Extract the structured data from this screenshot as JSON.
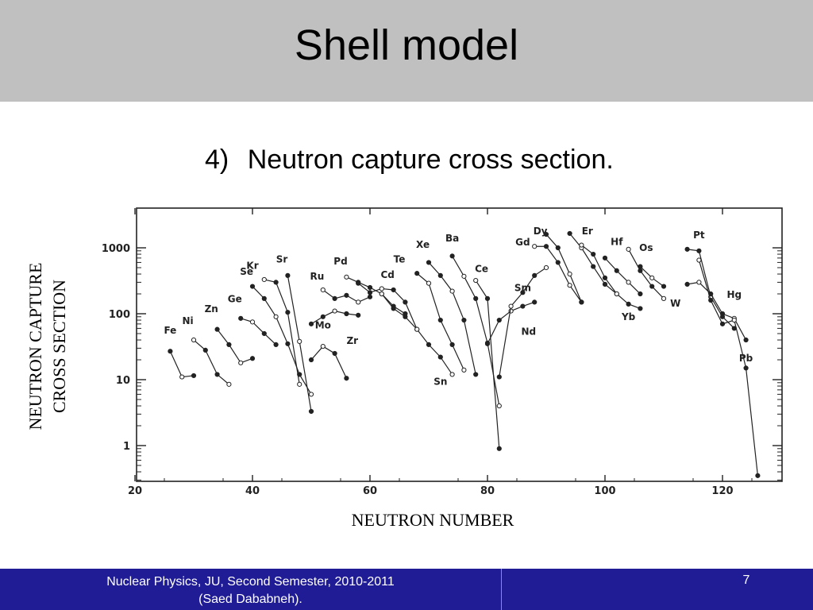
{
  "slide": {
    "title": "Shell model",
    "subtitle_number": "4)",
    "subtitle_text": "Neutron capture cross section.",
    "footer_line1": "Nuclear Physics, JU, Second Semester, 2010-2011",
    "footer_line2": "(Saed Dababneh).",
    "page_number": "7"
  },
  "colors": {
    "title_bar": "#c0c0c0",
    "footer_bar": "#1f1c96",
    "ink": "#222222"
  },
  "chart_data": {
    "type": "line",
    "xlabel": "NEUTRON NUMBER",
    "ylabel_line1": "NEUTRON CAPTURE",
    "ylabel_line2": "CROSS SECTION",
    "xlim": [
      20,
      130
    ],
    "ylim": [
      0.3,
      3000
    ],
    "y_scale": "log",
    "x_ticks": [
      {
        "v": 20,
        "label": "20"
      },
      {
        "v": 40,
        "label": "40"
      },
      {
        "v": 60,
        "label": "60"
      },
      {
        "v": 80,
        "label": "80"
      },
      {
        "v": 100,
        "label": "100"
      },
      {
        "v": 120,
        "label": "120"
      }
    ],
    "y_ticks": [
      {
        "v": 1000,
        "label": "1000"
      },
      {
        "v": 100,
        "label": "100"
      },
      {
        "v": 10,
        "label": "10"
      },
      {
        "v": 1,
        "label": "1"
      }
    ],
    "series": [
      {
        "name": "Fe",
        "label_at": [
          26,
          50
        ],
        "points": [
          [
            26,
            27
          ],
          [
            28,
            11
          ],
          [
            30,
            11.5
          ]
        ]
      },
      {
        "name": "Ni",
        "label_at": [
          29,
          70
        ],
        "points": [
          [
            30,
            40
          ],
          [
            32,
            28
          ],
          [
            34,
            12
          ],
          [
            36,
            8.5
          ]
        ]
      },
      {
        "name": "Zn",
        "label_at": [
          33,
          105
        ],
        "points": [
          [
            34,
            58
          ],
          [
            36,
            34
          ],
          [
            38,
            18
          ],
          [
            40,
            21
          ]
        ]
      },
      {
        "name": "Ge",
        "label_at": [
          37,
          150
        ],
        "points": [
          [
            38,
            85
          ],
          [
            40,
            75
          ],
          [
            42,
            50
          ],
          [
            44,
            34
          ]
        ]
      },
      {
        "name": "Se",
        "label_at": [
          39,
          390
        ],
        "points": [
          [
            42,
            330
          ],
          [
            44,
            300
          ],
          [
            46,
            105
          ],
          [
            48,
            8.5
          ]
        ]
      },
      {
        "name": "Kr",
        "label_at": [
          40,
          480
        ],
        "points": [
          [
            40,
            260
          ],
          [
            42,
            170
          ],
          [
            44,
            90
          ],
          [
            46,
            35
          ],
          [
            48,
            12
          ],
          [
            50,
            6
          ]
        ]
      },
      {
        "name": "Sr",
        "label_at": [
          45,
          600
        ],
        "points": [
          [
            46,
            380
          ],
          [
            48,
            38
          ],
          [
            50,
            3.3
          ]
        ]
      },
      {
        "name": "Ru",
        "label_at": [
          51,
          330
        ],
        "points": [
          [
            52,
            230
          ],
          [
            54,
            170
          ],
          [
            56,
            190
          ],
          [
            58,
            150
          ],
          [
            60,
            180
          ]
        ]
      },
      {
        "name": "Mo",
        "label_at": [
          52,
          60
        ],
        "points": [
          [
            50,
            70
          ],
          [
            52,
            90
          ],
          [
            54,
            110
          ],
          [
            56,
            100
          ],
          [
            58,
            95
          ]
        ]
      },
      {
        "name": "Zr",
        "label_at": [
          57,
          35
        ],
        "points": [
          [
            50,
            20
          ],
          [
            52,
            32
          ],
          [
            54,
            25
          ],
          [
            56,
            10.5
          ]
        ]
      },
      {
        "name": "Pd",
        "label_at": [
          55,
          560
        ],
        "points": [
          [
            56,
            360
          ],
          [
            58,
            300
          ],
          [
            60,
            250
          ],
          [
            62,
            200
          ],
          [
            64,
            130
          ],
          [
            66,
            100
          ]
        ]
      },
      {
        "name": "Cd",
        "label_at": [
          63,
          350
        ],
        "points": [
          [
            58,
            290
          ],
          [
            60,
            210
          ],
          [
            62,
            240
          ],
          [
            64,
            230
          ],
          [
            66,
            150
          ],
          [
            68,
            58
          ]
        ]
      },
      {
        "name": "Te",
        "label_at": [
          65,
          600
        ],
        "points": [
          [
            68,
            410
          ],
          [
            70,
            290
          ],
          [
            72,
            80
          ],
          [
            74,
            34
          ],
          [
            76,
            14
          ]
        ]
      },
      {
        "name": "Sn",
        "label_at": [
          72,
          8.3
        ],
        "points": [
          [
            62,
            200
          ],
          [
            64,
            120
          ],
          [
            66,
            90
          ],
          [
            68,
            58
          ],
          [
            70,
            34
          ],
          [
            72,
            22
          ],
          [
            74,
            12
          ]
        ]
      },
      {
        "name": "Xe",
        "label_at": [
          69,
          1000
        ],
        "points": [
          [
            70,
            600
          ],
          [
            72,
            380
          ],
          [
            74,
            220
          ],
          [
            76,
            80
          ],
          [
            78,
            12
          ]
        ]
      },
      {
        "name": "Ba",
        "label_at": [
          74,
          1250
        ],
        "points": [
          [
            74,
            750
          ],
          [
            76,
            370
          ],
          [
            78,
            170
          ],
          [
            80,
            36
          ],
          [
            82,
            4
          ]
        ]
      },
      {
        "name": "Ce",
        "label_at": [
          79,
          430
        ],
        "points": [
          [
            78,
            320
          ],
          [
            80,
            170
          ],
          [
            82,
            0.9
          ]
        ]
      },
      {
        "name": "Nd",
        "label_at": [
          87,
          48
        ],
        "points": [
          [
            80,
            35
          ],
          [
            82,
            80
          ],
          [
            84,
            110
          ],
          [
            86,
            130
          ],
          [
            88,
            150
          ]
        ]
      },
      {
        "name": "Sm",
        "label_at": [
          86,
          220
        ],
        "points": [
          [
            82,
            11
          ],
          [
            84,
            130
          ],
          [
            86,
            210
          ],
          [
            88,
            380
          ],
          [
            90,
            500
          ]
        ]
      },
      {
        "name": "Gd",
        "label_at": [
          86,
          1080
        ],
        "points": [
          [
            88,
            1050
          ],
          [
            90,
            1050
          ],
          [
            92,
            600
          ],
          [
            94,
            270
          ],
          [
            96,
            150
          ]
        ]
      },
      {
        "name": "Dy",
        "label_at": [
          89,
          1600
        ],
        "points": [
          [
            90,
            1600
          ],
          [
            92,
            1000
          ],
          [
            94,
            400
          ],
          [
            96,
            150
          ]
        ]
      },
      {
        "name": "Er",
        "label_at": [
          97,
          1600
        ],
        "points": [
          [
            94,
            1650
          ],
          [
            96,
            1000
          ],
          [
            98,
            520
          ],
          [
            100,
            280
          ],
          [
            102,
            200
          ]
        ]
      },
      {
        "name": "Yb",
        "label_at": [
          104,
          80
        ],
        "points": [
          [
            96,
            1100
          ],
          [
            98,
            800
          ],
          [
            100,
            350
          ],
          [
            102,
            200
          ],
          [
            104,
            140
          ],
          [
            106,
            120
          ]
        ]
      },
      {
        "name": "Hf",
        "label_at": [
          102,
          1100
        ],
        "points": [
          [
            100,
            700
          ],
          [
            102,
            450
          ],
          [
            104,
            300
          ],
          [
            106,
            200
          ]
        ]
      },
      {
        "name": "Os",
        "label_at": [
          107,
          900
        ],
        "points": [
          [
            106,
            520
          ],
          [
            108,
            350
          ],
          [
            110,
            260
          ]
        ]
      },
      {
        "name": "W",
        "label_at": [
          112,
          128
        ],
        "points": [
          [
            104,
            950
          ],
          [
            106,
            450
          ],
          [
            108,
            260
          ],
          [
            110,
            170
          ]
        ]
      },
      {
        "name": "Pt",
        "label_at": [
          116,
          1400
        ],
        "points": [
          [
            114,
            950
          ],
          [
            116,
            900
          ],
          [
            118,
            180
          ],
          [
            120,
            90
          ],
          [
            122,
            60
          ]
        ]
      },
      {
        "name": "Hg",
        "label_at": [
          122,
          175
        ],
        "points": [
          [
            114,
            280
          ],
          [
            116,
            300
          ],
          [
            118,
            200
          ],
          [
            120,
            100
          ],
          [
            122,
            85
          ],
          [
            124,
            40
          ]
        ]
      },
      {
        "name": "Pb",
        "label_at": [
          124,
          19
        ],
        "points": [
          [
            116,
            650
          ],
          [
            118,
            160
          ],
          [
            120,
            70
          ],
          [
            122,
            80
          ],
          [
            124,
            15
          ],
          [
            126,
            0.35
          ]
        ]
      }
    ]
  }
}
